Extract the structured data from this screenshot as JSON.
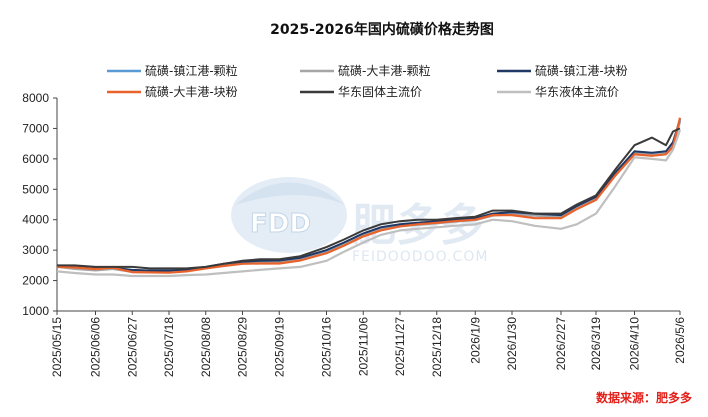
{
  "chart_data": {
    "type": "line",
    "title": "2025-2026年国内硫磺价格走势图",
    "source": "数据来源：肥多多",
    "watermark": {
      "brand": "FDD",
      "name": "肥多多",
      "url": "FEIDOODOO.COM"
    },
    "ylim": [
      1000,
      8000
    ],
    "yticks": [
      1000,
      2000,
      3000,
      4000,
      5000,
      6000,
      7000,
      8000
    ],
    "xlim": [
      "2025-05-15",
      "2026-05-06"
    ],
    "xticks": [
      "2025/05/15",
      "2025/06/06",
      "2025/06/27",
      "2025/07/18",
      "2025/08/08",
      "2025/08/29",
      "2025/09/19",
      "2025/10/16",
      "2025/11/06",
      "2025/11/27",
      "2025/12/18",
      "2026/1/9",
      "2026/1/30",
      "2026/2/27",
      "2026/3/19",
      "2026/4/10",
      "2026/5/6"
    ],
    "xtick_dates": [
      "2025-05-15",
      "2025-06-06",
      "2025-06-27",
      "2025-07-18",
      "2025-08-08",
      "2025-08-29",
      "2025-09-19",
      "2025-10-16",
      "2025-11-06",
      "2025-11-27",
      "2025-12-18",
      "2026-01-09",
      "2026-01-30",
      "2026-02-27",
      "2026-03-19",
      "2026-04-10",
      "2026-05-06"
    ],
    "grid": false,
    "legend_position": "top",
    "series": [
      {
        "name": "硫磺-镇江港-颗粒",
        "color": "#5b9bd5",
        "x": [
          "2025-05-15",
          "2025-05-25",
          "2025-06-06",
          "2025-06-16",
          "2025-06-27",
          "2025-07-07",
          "2025-07-18",
          "2025-07-28",
          "2025-08-08",
          "2025-08-18",
          "2025-08-29",
          "2025-09-08",
          "2025-09-19",
          "2025-10-01",
          "2025-10-16",
          "2025-10-26",
          "2025-11-06",
          "2025-11-16",
          "2025-11-27",
          "2025-12-07",
          "2025-12-18",
          "2025-12-28",
          "2026-01-09",
          "2026-01-19",
          "2026-01-30",
          "2026-02-12",
          "2026-02-27",
          "2026-03-08",
          "2026-03-19",
          "2026-03-30",
          "2026-04-10",
          "2026-04-20",
          "2026-04-28",
          "2026-05-02",
          "2026-05-06"
        ],
        "values": [
          2480,
          2400,
          2350,
          2400,
          2300,
          2300,
          2300,
          2350,
          2420,
          2500,
          2580,
          2600,
          2620,
          2700,
          2950,
          3200,
          3500,
          3700,
          3800,
          3850,
          3900,
          3950,
          4000,
          4150,
          4200,
          4150,
          4100,
          4400,
          4700,
          5500,
          6200,
          6150,
          6200,
          6500,
          7250
        ]
      },
      {
        "name": "硫磺-大丰港-颗粒",
        "color": "#a5a5a5",
        "x": [
          "2025-05-15",
          "2025-05-25",
          "2025-06-06",
          "2025-06-16",
          "2025-06-27",
          "2025-07-07",
          "2025-07-18",
          "2025-07-28",
          "2025-08-08",
          "2025-08-18",
          "2025-08-29",
          "2025-09-08",
          "2025-09-19",
          "2025-10-01",
          "2025-10-16",
          "2025-10-26",
          "2025-11-06",
          "2025-11-16",
          "2025-11-27",
          "2025-12-07",
          "2025-12-18",
          "2025-12-28",
          "2026-01-09",
          "2026-01-19",
          "2026-01-30",
          "2026-02-12",
          "2026-02-27",
          "2026-03-08",
          "2026-03-19",
          "2026-03-30",
          "2026-04-10",
          "2026-04-20",
          "2026-04-28",
          "2026-05-02",
          "2026-05-06"
        ],
        "values": [
          2450,
          2380,
          2330,
          2380,
          2280,
          2280,
          2280,
          2330,
          2400,
          2480,
          2560,
          2580,
          2600,
          2680,
          2920,
          3180,
          3480,
          3680,
          3780,
          3830,
          3880,
          3930,
          3980,
          4130,
          4180,
          4130,
          4080,
          4380,
          4680,
          5480,
          6180,
          6130,
          6180,
          6480,
          7200
        ]
      },
      {
        "name": "硫磺-镇江港-块粉",
        "color": "#203864",
        "x": [
          "2025-05-15",
          "2025-05-25",
          "2025-06-06",
          "2025-06-16",
          "2025-06-27",
          "2025-07-07",
          "2025-07-18",
          "2025-07-28",
          "2025-08-08",
          "2025-08-18",
          "2025-08-29",
          "2025-09-08",
          "2025-09-19",
          "2025-10-01",
          "2025-10-16",
          "2025-10-26",
          "2025-11-06",
          "2025-11-16",
          "2025-11-27",
          "2025-12-07",
          "2025-12-18",
          "2025-12-28",
          "2026-01-09",
          "2026-01-19",
          "2026-01-30",
          "2026-02-12",
          "2026-02-27",
          "2026-03-08",
          "2026-03-19",
          "2026-03-30",
          "2026-04-10",
          "2026-04-20",
          "2026-04-28",
          "2026-05-02",
          "2026-05-06"
        ],
        "values": [
          2500,
          2450,
          2420,
          2420,
          2350,
          2330,
          2330,
          2360,
          2450,
          2550,
          2620,
          2650,
          2660,
          2750,
          3000,
          3250,
          3550,
          3750,
          3850,
          3900,
          3950,
          4000,
          4050,
          4200,
          4250,
          4200,
          4150,
          4450,
          4750,
          5550,
          6250,
          6200,
          6250,
          6550,
          7300
        ]
      },
      {
        "name": "硫磺-大丰港-块粉",
        "color": "#e8622c",
        "x": [
          "2025-05-15",
          "2025-05-25",
          "2025-06-06",
          "2025-06-16",
          "2025-06-27",
          "2025-07-07",
          "2025-07-18",
          "2025-07-28",
          "2025-08-08",
          "2025-08-18",
          "2025-08-29",
          "2025-09-08",
          "2025-09-19",
          "2025-10-01",
          "2025-10-16",
          "2025-10-26",
          "2025-11-06",
          "2025-11-16",
          "2025-11-27",
          "2025-12-07",
          "2025-12-18",
          "2025-12-28",
          "2026-01-09",
          "2026-01-19",
          "2026-01-30",
          "2026-02-12",
          "2026-02-27",
          "2026-03-08",
          "2026-03-19",
          "2026-03-30",
          "2026-04-10",
          "2026-04-20",
          "2026-04-28",
          "2026-05-02",
          "2026-05-06"
        ],
        "values": [
          2450,
          2430,
          2380,
          2420,
          2280,
          2270,
          2260,
          2300,
          2400,
          2480,
          2550,
          2560,
          2560,
          2660,
          2900,
          3150,
          3450,
          3650,
          3780,
          3850,
          3900,
          3950,
          4000,
          4150,
          4150,
          4050,
          4050,
          4350,
          4650,
          5450,
          6150,
          6100,
          6150,
          6400,
          7350
        ]
      },
      {
        "name": "华东固体主流价",
        "color": "#3a3a3a",
        "x": [
          "2025-05-15",
          "2025-05-25",
          "2025-06-06",
          "2025-06-16",
          "2025-06-27",
          "2025-07-07",
          "2025-07-18",
          "2025-07-28",
          "2025-08-08",
          "2025-08-18",
          "2025-08-29",
          "2025-09-08",
          "2025-09-19",
          "2025-10-01",
          "2025-10-16",
          "2025-10-26",
          "2025-11-06",
          "2025-11-16",
          "2025-11-27",
          "2025-12-07",
          "2025-12-18",
          "2025-12-28",
          "2026-01-09",
          "2026-01-19",
          "2026-01-30",
          "2026-02-12",
          "2026-02-27",
          "2026-03-08",
          "2026-03-19",
          "2026-03-30",
          "2026-04-10",
          "2026-04-20",
          "2026-04-28",
          "2026-05-02",
          "2026-05-06"
        ],
        "values": [
          2500,
          2500,
          2450,
          2450,
          2450,
          2400,
          2400,
          2400,
          2450,
          2550,
          2650,
          2700,
          2700,
          2800,
          3100,
          3350,
          3650,
          3850,
          3950,
          4000,
          4000,
          4050,
          4100,
          4300,
          4300,
          4200,
          4200,
          4500,
          4800,
          5650,
          6450,
          6700,
          6450,
          6900,
          7000
        ]
      },
      {
        "name": "华东液体主流价",
        "color": "#bfbfbf",
        "x": [
          "2025-05-15",
          "2025-05-25",
          "2025-06-06",
          "2025-06-16",
          "2025-06-27",
          "2025-07-07",
          "2025-07-18",
          "2025-07-28",
          "2025-08-08",
          "2025-08-18",
          "2025-08-29",
          "2025-09-08",
          "2025-09-19",
          "2025-10-01",
          "2025-10-16",
          "2025-10-26",
          "2025-11-06",
          "2025-11-16",
          "2025-11-27",
          "2025-12-07",
          "2025-12-18",
          "2025-12-28",
          "2026-01-09",
          "2026-01-19",
          "2026-01-30",
          "2026-02-12",
          "2026-02-27",
          "2026-03-08",
          "2026-03-19",
          "2026-03-30",
          "2026-04-10",
          "2026-04-20",
          "2026-04-28",
          "2026-05-02",
          "2026-05-06"
        ],
        "values": [
          2300,
          2250,
          2200,
          2200,
          2150,
          2150,
          2150,
          2180,
          2200,
          2250,
          2300,
          2350,
          2400,
          2450,
          2650,
          2950,
          3250,
          3500,
          3650,
          3700,
          3750,
          3800,
          3850,
          4000,
          3950,
          3800,
          3700,
          3850,
          4200,
          5100,
          6050,
          6000,
          5950,
          6300,
          6950
        ]
      }
    ]
  }
}
